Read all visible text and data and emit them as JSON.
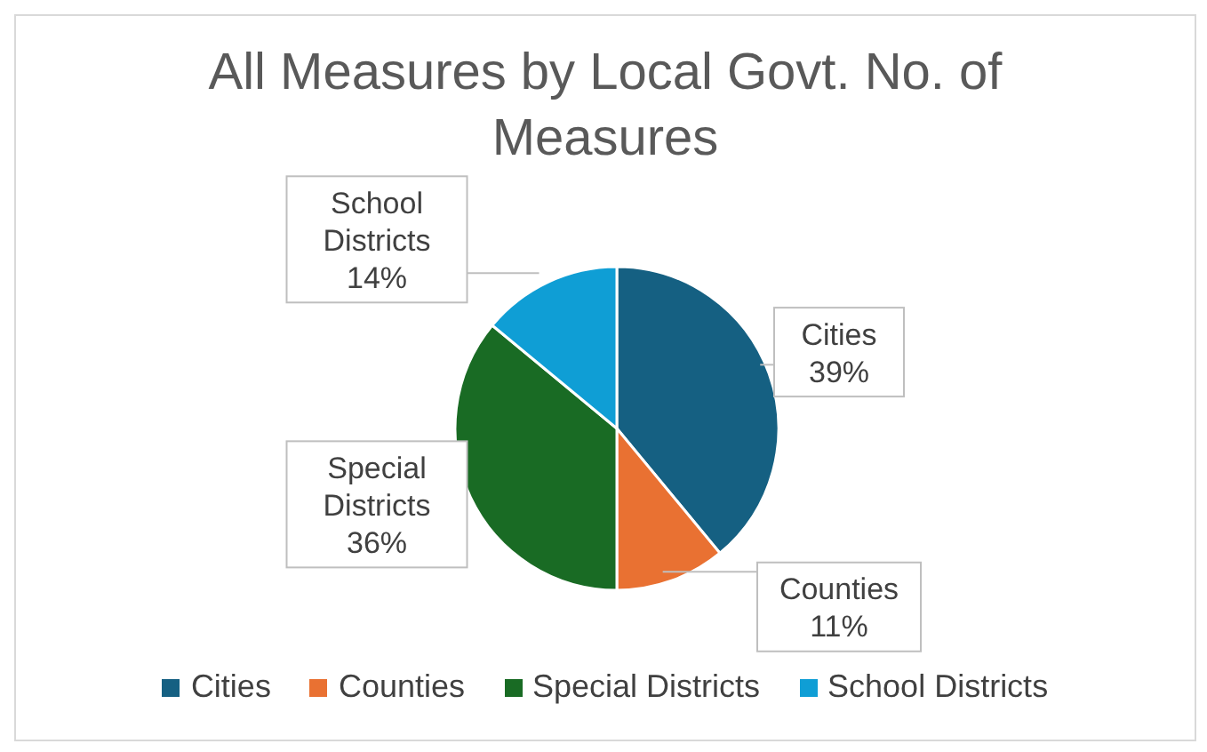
{
  "chart_data": {
    "type": "pie",
    "title": "All Measures by Local Govt. No. of Measures",
    "categories": [
      "Cities",
      "Counties",
      "Special Districts",
      "School Districts"
    ],
    "values": [
      39,
      11,
      36,
      14
    ],
    "colors": [
      "#156082",
      "#e97132",
      "#196b24",
      "#0f9ed5"
    ],
    "value_labels": [
      "39%",
      "11%",
      "36%",
      "14%"
    ],
    "legend": "bottom"
  }
}
